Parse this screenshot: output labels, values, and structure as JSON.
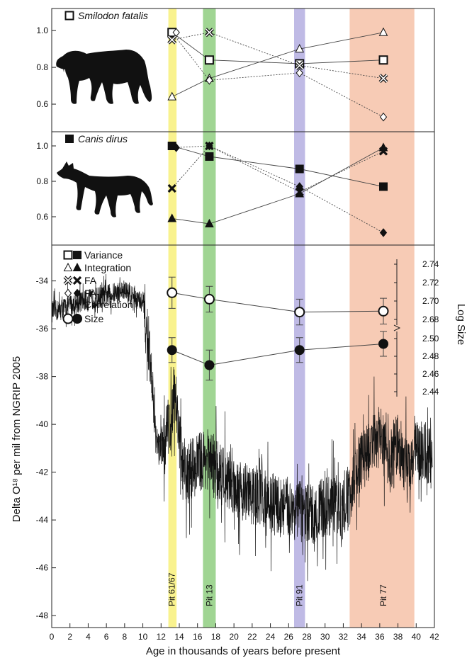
{
  "chart_data": {
    "type": "composite",
    "x_axis": {
      "label": "Age in thousands of years before present",
      "range": [
        0,
        42
      ],
      "ticks": [
        0,
        2,
        4,
        6,
        8,
        10,
        12,
        14,
        16,
        18,
        20,
        22,
        24,
        26,
        28,
        30,
        32,
        34,
        36,
        38,
        40,
        42
      ]
    },
    "pits": [
      {
        "name": "Pit 61/67",
        "x_from": 12.8,
        "x_to": 13.7,
        "x_center": 13.2,
        "color": "#f8f07a"
      },
      {
        "name": "Pit 13",
        "x_from": 16.6,
        "x_to": 18.0,
        "x_center": 17.3,
        "color": "#8fce80"
      },
      {
        "name": "Pit 91",
        "x_from": 26.6,
        "x_to": 27.8,
        "x_center": 27.2,
        "color": "#b4aee0"
      },
      {
        "name": "Pit 77",
        "x_from": 32.7,
        "x_to": 39.8,
        "x_center": 36.4,
        "color": "#f6c2a8"
      }
    ],
    "panels": [
      {
        "species": "Smilodon fatalis",
        "legend_marker": "open-square",
        "y_ticks": [
          "1.0",
          "0.8",
          "0.6"
        ],
        "ylim": [
          0.45,
          1.12
        ],
        "series": [
          {
            "metric": "Variance",
            "marker": "open-square",
            "line": "solid",
            "values": [
              0.99,
              0.84,
              0.82,
              0.84
            ]
          },
          {
            "metric": "Integration",
            "marker": "open-triangle",
            "line": "solid",
            "values": [
              0.64,
              0.74,
              0.9,
              0.99
            ]
          },
          {
            "metric": "FA",
            "marker": "open-x",
            "line": "dotted",
            "values": [
              0.95,
              0.99,
              0.81,
              0.74
            ]
          },
          {
            "metric": "FA-Int Correlation",
            "marker": "open-diamond",
            "line": "dotted",
            "values": [
              0.99,
              0.73,
              0.77,
              0.53
            ]
          }
        ]
      },
      {
        "species": "Canis dirus",
        "legend_marker": "filled-square",
        "y_ticks": [
          "1.0",
          "0.8",
          "0.6"
        ],
        "ylim": [
          0.44,
          1.08
        ],
        "series": [
          {
            "metric": "Variance",
            "marker": "filled-square",
            "line": "solid",
            "values": [
              1.0,
              0.94,
              0.87,
              0.77
            ]
          },
          {
            "metric": "Integration",
            "marker": "filled-triangle",
            "line": "solid",
            "values": [
              0.59,
              0.56,
              0.73,
              0.99
            ]
          },
          {
            "metric": "FA",
            "marker": "filled-x",
            "line": "dotted",
            "values": [
              0.76,
              1.0,
              0.74,
              0.97
            ]
          },
          {
            "metric": "FA-Int Correlation",
            "marker": "filled-diamond",
            "line": "dotted",
            "values": [
              0.99,
              1.0,
              0.77,
              0.51
            ]
          }
        ]
      }
    ],
    "legend": [
      {
        "markers": "□■",
        "label": "Variance"
      },
      {
        "markers": "△▲",
        "label": "Integration"
      },
      {
        "markers": "XX",
        "label": "FA"
      },
      {
        "markers": "◇◆",
        "label": "FA-Int Correlation",
        "label_lines": [
          "FA-Int",
          "Correlation"
        ]
      },
      {
        "markers": "○●",
        "label": "Size"
      }
    ],
    "log_size": {
      "label": "Log Size",
      "upper_ticks": [
        "2.74",
        "2.72",
        "2.70",
        "2.68"
      ],
      "lower_ticks": [
        "2.50",
        "2.48",
        "2.46",
        "2.44"
      ],
      "upper_range": [
        2.68,
        2.74
      ],
      "lower_range": [
        2.44,
        2.5
      ],
      "axis_break": true,
      "smilodon": {
        "marker": "open-circle",
        "values": [
          2.709,
          2.702,
          2.688,
          2.689
        ],
        "err": [
          0.017,
          0.014,
          0.014,
          0.014
        ]
      },
      "canis": {
        "marker": "filled-circle",
        "values": [
          2.487,
          2.47,
          2.487,
          2.494
        ],
        "err": [
          0.014,
          0.017,
          0.014,
          0.014
        ]
      }
    },
    "delta_o18": {
      "type": "line",
      "ylabel": "Delta O¹⁸ per mil from NGRIP 2005",
      "ylim": [
        -48.5,
        -32.5
      ],
      "y_ticks": [
        -34,
        -36,
        -38,
        -40,
        -42,
        -44,
        -46,
        -48
      ],
      "anchors_x": [
        0,
        1,
        2,
        3,
        4,
        5,
        6,
        7,
        8,
        9,
        10,
        10.8,
        11.5,
        12,
        12.5,
        13,
        13.5,
        14,
        14.5,
        15,
        16,
        17,
        18,
        19,
        20,
        21,
        22,
        23,
        24,
        25,
        26,
        27,
        28,
        29,
        30,
        31,
        32,
        33,
        34,
        35,
        36,
        37,
        38,
        39,
        40,
        41,
        41.8
      ],
      "anchors_y": [
        -35.3,
        -35.2,
        -35.0,
        -34.9,
        -34.8,
        -34.7,
        -34.6,
        -34.5,
        -34.4,
        -34.6,
        -35.0,
        -37.5,
        -40.8,
        -41.2,
        -40.5,
        -39.8,
        -38.5,
        -40.5,
        -42.3,
        -42.0,
        -41.6,
        -41.4,
        -41.9,
        -42.2,
        -42.5,
        -42.8,
        -43.0,
        -43.0,
        -43.3,
        -43.4,
        -43.5,
        -43.6,
        -43.8,
        -43.7,
        -43.5,
        -43.3,
        -43.6,
        -42.5,
        -41.5,
        -41.0,
        -40.5,
        -41.5,
        -40.8,
        -41.8,
        -41.0,
        -41.2,
        -41.5
      ]
    }
  }
}
